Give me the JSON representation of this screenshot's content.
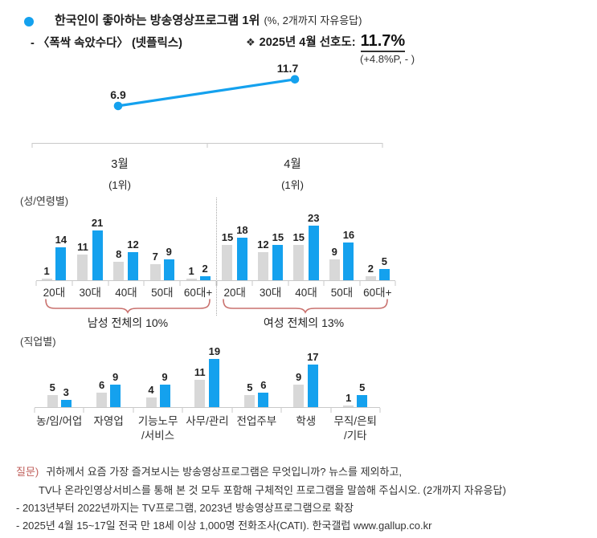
{
  "header": {
    "title": "한국인이 좋아하는 방송영상프로그램 1위",
    "title_note": "(%, 2개까지 자유응답)",
    "subtitle": "- 〈폭싹 속았수다〉 (넷플릭스)",
    "preference_marker": "❖",
    "preference_label": "2025년 4월 선호도:",
    "preference_value": "11.7%",
    "preference_change": "(+4.8%P, - )"
  },
  "colors": {
    "blue": "#14a1ee",
    "gray": "#d8d8d8",
    "axis": "#c9c9c9",
    "accent_red": "#c0605c",
    "brace_red": "#c9716e"
  },
  "chart_data": [
    {
      "type": "line",
      "x": [
        "3월",
        "4월"
      ],
      "x_sub": [
        "(1위)",
        "(1위)"
      ],
      "values": [
        6.9,
        11.7
      ],
      "series_color": "#14a1ee"
    },
    {
      "type": "bar",
      "section_label": "(성/연령별)",
      "groups": [
        {
          "name": "남성",
          "categories": [
            "20대",
            "30대",
            "40대",
            "50대",
            "60대+"
          ],
          "series": [
            {
              "name": "3월",
              "color_key": "gray",
              "values": [
                1,
                11,
                8,
                7,
                1
              ]
            },
            {
              "name": "4월",
              "color_key": "blue",
              "values": [
                14,
                21,
                12,
                9,
                2
              ]
            }
          ],
          "summary": "남성 전체의 10%"
        },
        {
          "name": "여성",
          "categories": [
            "20대",
            "30대",
            "40대",
            "50대",
            "60대+"
          ],
          "series": [
            {
              "name": "3월",
              "color_key": "gray",
              "values": [
                15,
                12,
                15,
                9,
                2
              ]
            },
            {
              "name": "4월",
              "color_key": "blue",
              "values": [
                18,
                15,
                23,
                16,
                5
              ]
            }
          ],
          "summary": "여성 전체의 13%"
        }
      ]
    },
    {
      "type": "bar",
      "section_label": "(직업별)",
      "categories": [
        [
          "농/임/어업"
        ],
        [
          "자영업"
        ],
        [
          "기능노무",
          "/서비스"
        ],
        [
          "사무/관리"
        ],
        [
          "전업주부"
        ],
        [
          "학생"
        ],
        [
          "무직/은퇴",
          "/기타"
        ]
      ],
      "series": [
        {
          "name": "3월",
          "color_key": "gray",
          "values": [
            5,
            6,
            4,
            11,
            5,
            9,
            1
          ]
        },
        {
          "name": "4월",
          "color_key": "blue",
          "values": [
            3,
            9,
            9,
            19,
            6,
            17,
            5
          ]
        }
      ]
    }
  ],
  "footer": {
    "q_label": "질문)",
    "q_line1": "귀하께서 요즘 가장 즐겨보시는 방송영상프로그램은 무엇입니까? 뉴스를 제외하고,",
    "q_line2": "TV나 온라인영상서비스를 통해 본 것 모두 포함해 구체적인 프로그램을 말씀해 주십시오. (2개까지 자유응답)",
    "note1": "- 2013년부터 2022년까지는 TV프로그램, 2023년 방송영상프로그램으로 확장",
    "note2": "- 2025년 4월 15~17일 전국 만 18세 이상 1,000명 전화조사(CATI). 한국갤럽 www.gallup.co.kr"
  }
}
